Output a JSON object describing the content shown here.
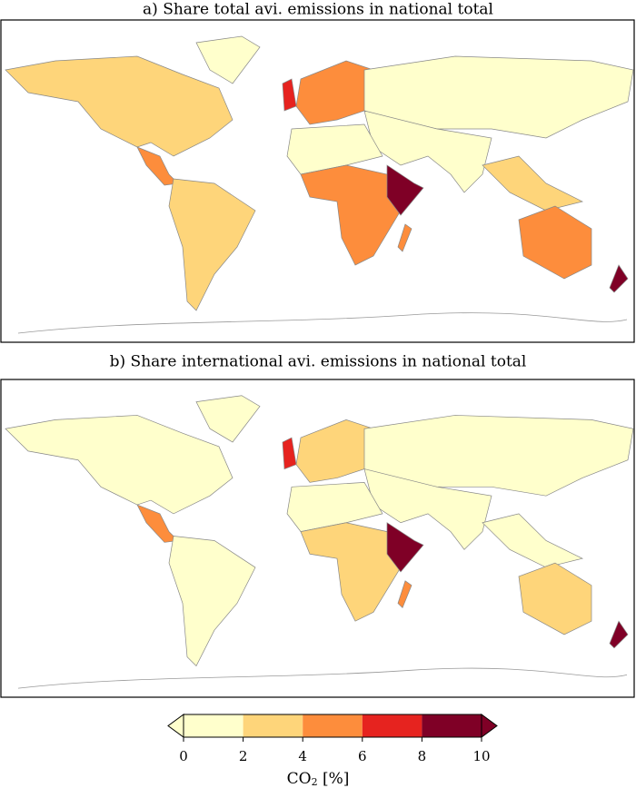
{
  "maps": [
    {
      "title": "a) Share total avi. emissions in national total",
      "region_values": [
        3,
        1,
        5,
        3,
        5,
        7,
        1,
        1,
        1,
        5,
        9,
        3,
        5,
        9,
        5
      ]
    },
    {
      "title": "b) Share international avi. emissions in national total",
      "region_values": [
        1,
        1,
        5,
        1,
        3,
        7,
        1,
        1,
        1,
        3,
        9,
        1,
        3,
        9,
        5
      ]
    }
  ],
  "colorbar": {
    "ticks": [
      0,
      2,
      4,
      6,
      8,
      10
    ],
    "colors": [
      "#ffffcc",
      "#fed57a",
      "#fd8d3c",
      "#e6231f",
      "#7f0026"
    ],
    "label": "CO",
    "label_sub": "2",
    "label_unit": " [%]"
  }
}
